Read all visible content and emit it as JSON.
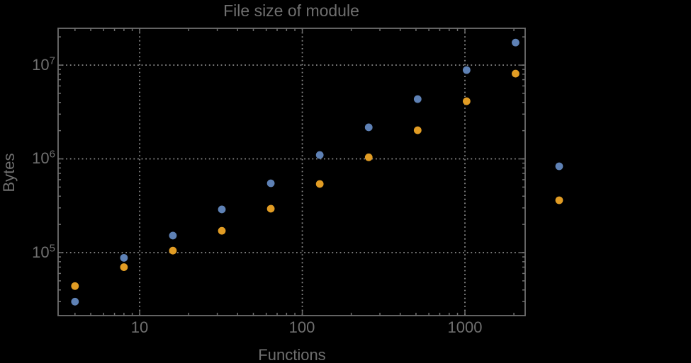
{
  "chart_data": {
    "type": "scatter",
    "title": "File size of module",
    "xlabel": "Functions",
    "ylabel": "Bytes",
    "x_scale": "log",
    "y_scale": "log",
    "xlim": [
      3.15,
      2346
    ],
    "ylim": [
      21300,
      24700000
    ],
    "grid": "dotted lines at major (decade) ticks",
    "x_major_ticks": [
      10,
      100,
      1000
    ],
    "x_tick_labels": [
      "10",
      "100",
      "1000"
    ],
    "y_major_ticks": [
      100000,
      1000000,
      10000000
    ],
    "y_tick_labels": [
      {
        "base": "10",
        "exp": "5"
      },
      {
        "base": "10",
        "exp": "6"
      },
      {
        "base": "10",
        "exp": "7"
      }
    ],
    "series": [
      {
        "name": "series-1-blue",
        "color": "#5E81B5",
        "x": [
          4,
          8,
          16,
          32,
          64,
          128,
          256,
          512,
          1024,
          2048
        ],
        "y": [
          30000,
          88000,
          152000,
          289000,
          549000,
          1100000,
          2170000,
          4340000,
          8860000,
          17400000
        ]
      },
      {
        "name": "series-2-orange",
        "color": "#E19C24",
        "x": [
          4,
          8,
          16,
          32,
          64,
          128,
          256,
          512,
          1024,
          2048
        ],
        "y": [
          44000,
          70000,
          105000,
          171000,
          294000,
          540000,
          1040000,
          2020000,
          4120000,
          8110000
        ]
      }
    ],
    "legend": {
      "position": "right-of-frame",
      "labels_visible": false,
      "markers": [
        {
          "color": "#5E81B5"
        },
        {
          "color": "#E19C24"
        }
      ]
    }
  },
  "colors": {
    "background": "#000000",
    "frame": "#6e6e6e",
    "grid": "#8b8b8b",
    "text": "#6f6f6f"
  }
}
